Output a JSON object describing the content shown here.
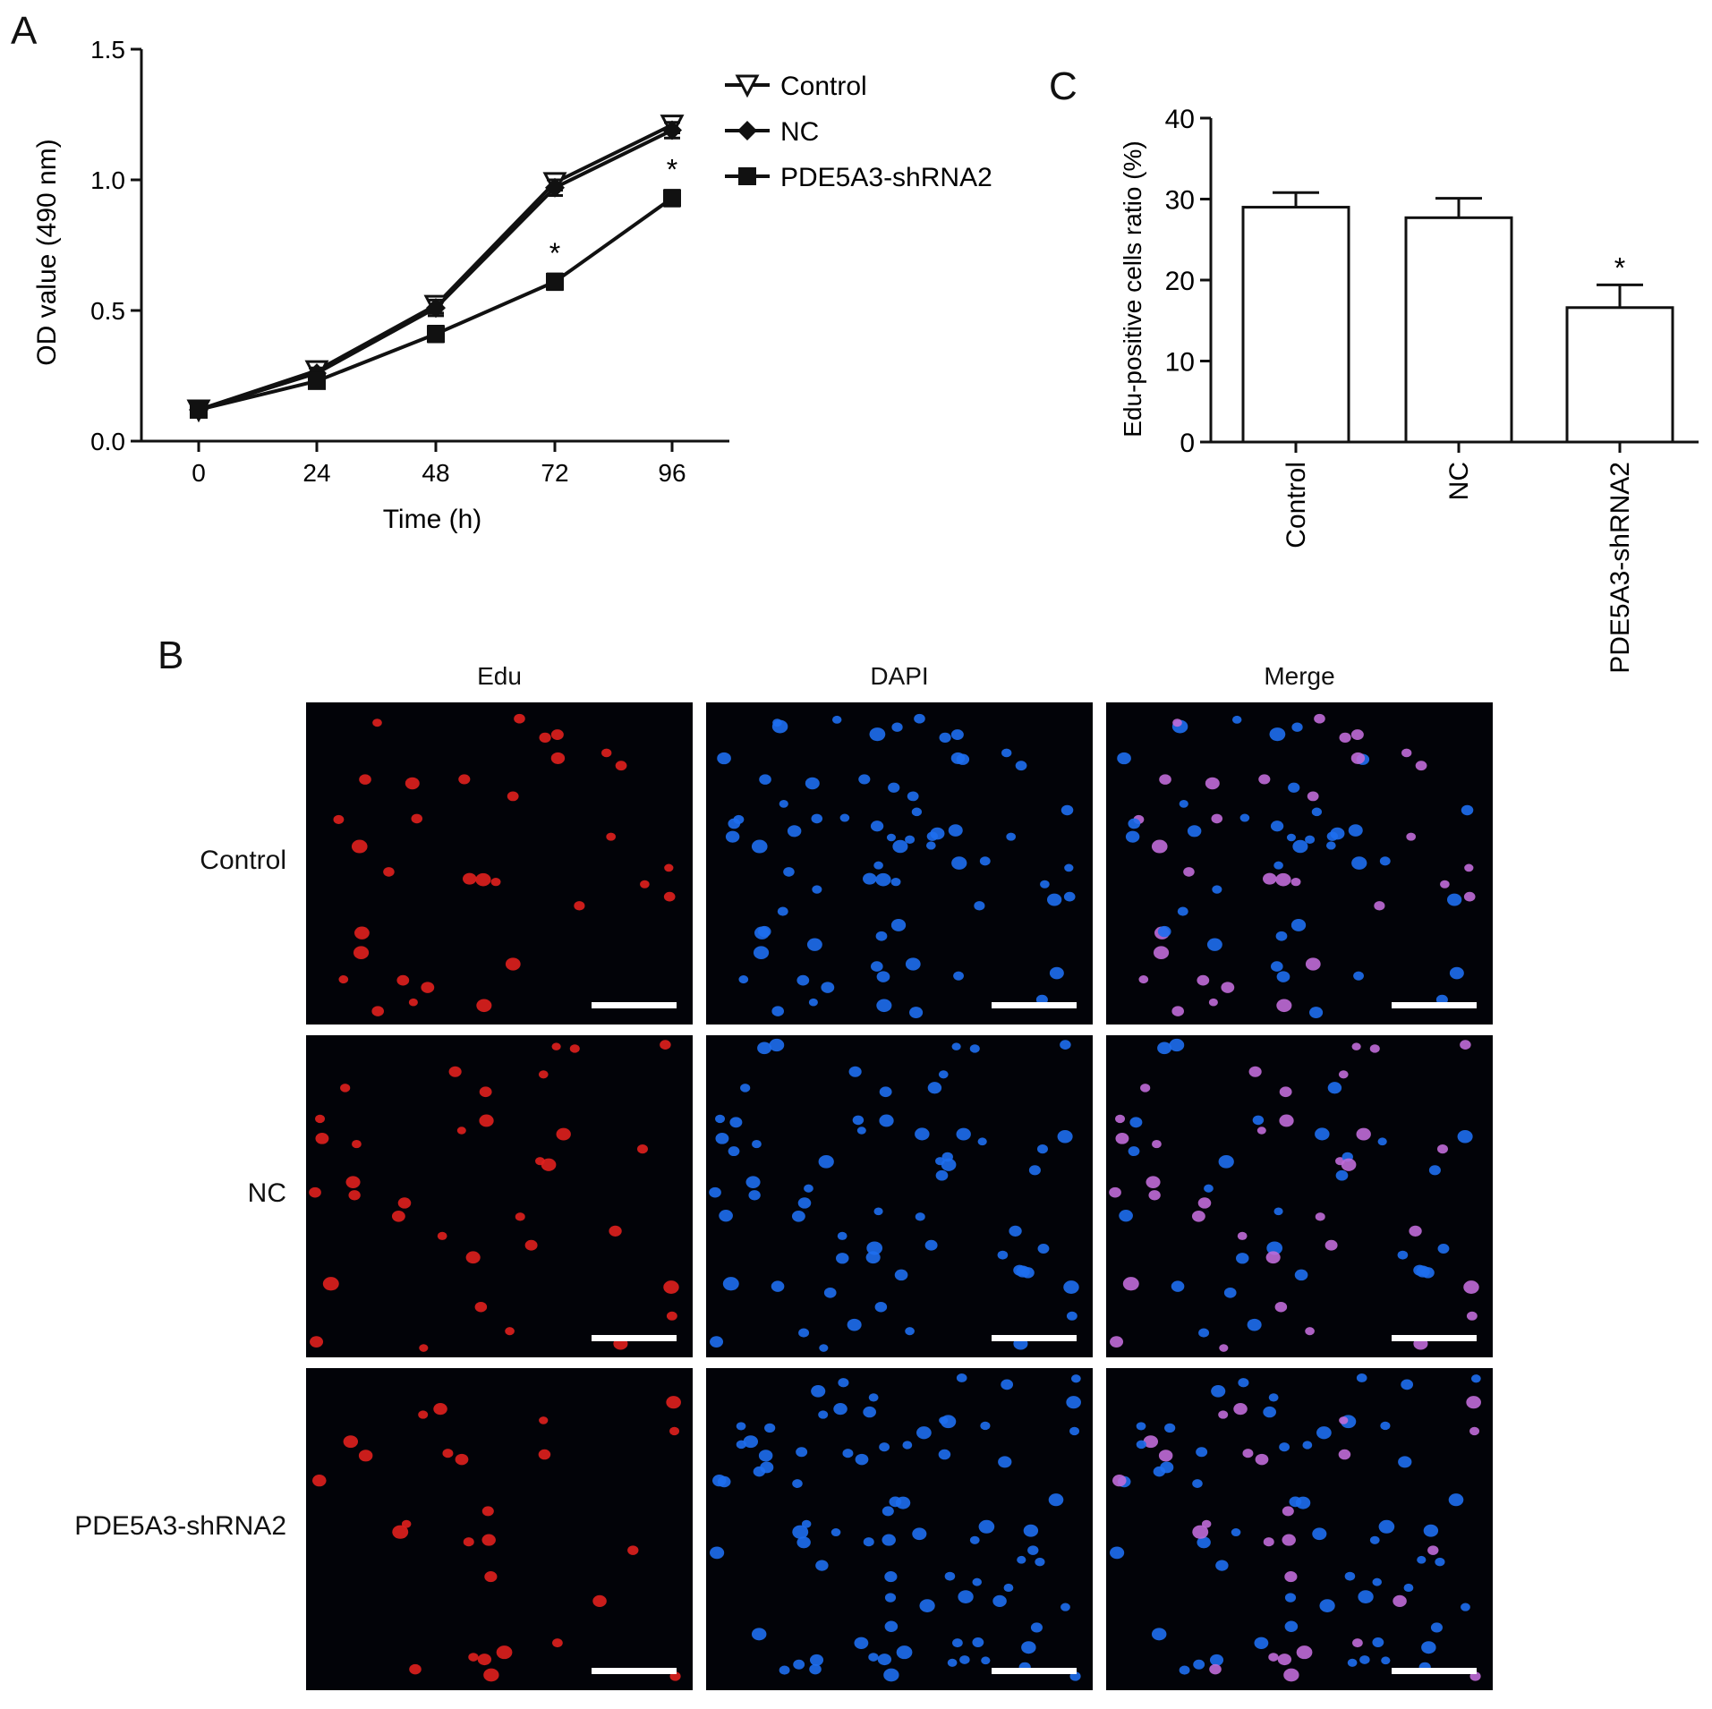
{
  "panels": {
    "a": "A",
    "b": "B",
    "c": "C"
  },
  "chart_data": [
    {
      "type": "line",
      "title": "",
      "xlabel": "Time (h)",
      "ylabel": "OD value (490 nm)",
      "x": [
        0,
        24,
        48,
        72,
        96
      ],
      "xticks": [
        "0",
        "24",
        "48",
        "72",
        "96"
      ],
      "yticks": [
        "0.0",
        "0.5",
        "1.0",
        "1.5"
      ],
      "ylim": [
        0,
        1.5
      ],
      "legend_position": "top-right",
      "series": [
        {
          "name": "Control",
          "marker": "triangle-down",
          "values": [
            0.12,
            0.27,
            0.52,
            0.99,
            1.21
          ],
          "errors": [
            0.02,
            0.02,
            0.03,
            0.03,
            0.03
          ]
        },
        {
          "name": "NC",
          "marker": "diamond",
          "values": [
            0.12,
            0.26,
            0.51,
            0.97,
            1.19
          ],
          "errors": [
            0.02,
            0.02,
            0.03,
            0.03,
            0.03
          ]
        },
        {
          "name": "PDE5A3-shRNA2",
          "marker": "square",
          "values": [
            0.12,
            0.23,
            0.41,
            0.61,
            0.93
          ],
          "errors": [
            0.02,
            0.02,
            0.03,
            0.03,
            0.03
          ]
        }
      ],
      "annotations": [
        {
          "x": 72,
          "series": "PDE5A3-shRNA2",
          "text": "*"
        },
        {
          "x": 96,
          "series": "PDE5A3-shRNA2",
          "text": "*"
        }
      ]
    },
    {
      "type": "bar",
      "title": "",
      "xlabel": "",
      "ylabel": "Edu-positive cells ratio (%)",
      "categories": [
        "Control",
        "NC",
        "PDE5A3-shRNA2"
      ],
      "values": [
        29,
        27.7,
        16.6
      ],
      "errors": [
        1.8,
        2.4,
        2.8
      ],
      "yticks": [
        "0",
        "10",
        "20",
        "30",
        "40"
      ],
      "ylim": [
        0,
        40
      ],
      "annotations": [
        {
          "category": "PDE5A3-shRNA2",
          "text": "*"
        }
      ]
    }
  ],
  "micrographs": {
    "columns": [
      "Edu",
      "DAPI",
      "Merge"
    ],
    "rows": [
      "Control",
      "NC",
      "PDE5A3-shRNA2"
    ],
    "colors": {
      "edu": "#e0201e",
      "dapi": "#1e6ef0",
      "merge": "#c06bd8",
      "background": "#020308"
    }
  }
}
